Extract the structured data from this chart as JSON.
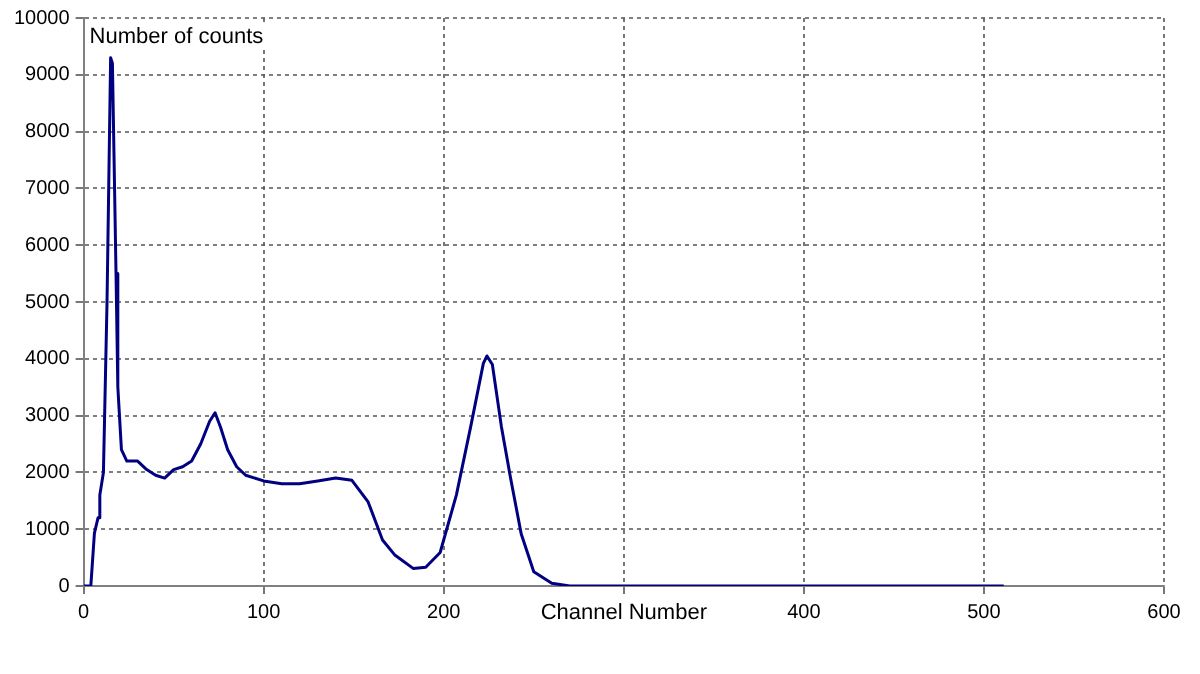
{
  "chart_data": {
    "type": "line",
    "xlabel": "Channel Number",
    "ylabel": "Number of counts",
    "x": [
      0,
      4,
      6,
      8,
      9,
      11,
      13,
      15,
      16,
      18,
      19,
      21,
      24,
      30,
      35,
      40,
      45,
      50,
      55,
      60,
      65,
      70,
      73,
      76,
      80,
      85,
      90,
      100,
      110,
      120,
      130,
      140,
      149,
      158,
      166,
      173,
      183,
      190,
      198,
      207,
      215,
      222,
      224,
      227,
      232,
      237,
      243,
      250,
      260,
      270,
      300,
      400,
      511
    ],
    "series": [
      {
        "color": "#000080",
        "values": [
          0,
          0,
          930,
          1200,
          1600,
          2000,
          5000,
          9300,
          9200,
          5500,
          3500,
          2400,
          2200,
          2200,
          2050,
          1950,
          1900,
          2050,
          2100,
          2200,
          2500,
          2900,
          3050,
          2800,
          2400,
          2100,
          1950,
          1850,
          1800,
          1800,
          1850,
          1900,
          1860,
          1480,
          810,
          540,
          310,
          330,
          590,
          1600,
          2810,
          3920,
          4050,
          3900,
          2810,
          1920,
          920,
          250,
          50,
          0,
          0,
          0,
          0
        ]
      }
    ],
    "xlim": [
      0,
      600
    ],
    "xticks": [
      0,
      100,
      200,
      {
        "value": 300,
        "label": null
      },
      400,
      500,
      600
    ],
    "ylim": [
      0,
      10000
    ],
    "yticks": [
      0,
      1000,
      2000,
      3000,
      4000,
      5000,
      6000,
      7000,
      8000,
      9000,
      10000
    ],
    "grid": true,
    "legend": false,
    "marker": "none",
    "line_style": "solid"
  }
}
